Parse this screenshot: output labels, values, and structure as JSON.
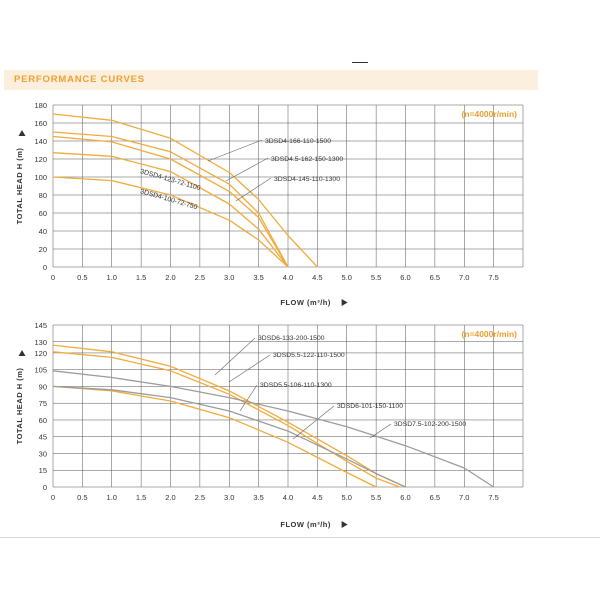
{
  "header": {
    "title": "PERFORMANCE CURVES"
  },
  "colors": {
    "orange": "#f0ab3c",
    "gray": "#9c9c9c",
    "grid": "#555555",
    "text": "#333333",
    "note": "#e8a030",
    "banner": "#fcefdd"
  },
  "chart_data": [
    {
      "type": "line",
      "speed_note": "(n=4000r/min)",
      "xlabel": "FLOW (m³/h)",
      "ylabel": "TOTAL HEAD H (m)",
      "xlim": [
        0,
        8
      ],
      "ylim": [
        0,
        180
      ],
      "x_ticks": [
        "0",
        "0.5",
        "1.0",
        "1.5",
        "2.0",
        "2.5",
        "3.0",
        "3.5",
        "4.0",
        "4.5",
        "5.0",
        "5.5",
        "6.0",
        "6.5",
        "7.0",
        "7.5"
      ],
      "y_ticks": [
        "0",
        "20",
        "40",
        "60",
        "80",
        "100",
        "120",
        "140",
        "160",
        "180"
      ],
      "series": [
        {
          "name": "3DSD4-166-110-1500",
          "color": "orange",
          "x": [
            0,
            1,
            2,
            3,
            3.5,
            4.0,
            4.5
          ],
          "y": [
            170,
            163,
            143,
            105,
            75,
            35,
            0
          ]
        },
        {
          "name": "3DSD4.5-162-150-1300",
          "color": "orange",
          "x": [
            0,
            1,
            2,
            3,
            3.5,
            4.0
          ],
          "y": [
            150,
            145,
            128,
            92,
            60,
            0
          ]
        },
        {
          "name": "3DSD4-145-110-1300",
          "color": "orange",
          "x": [
            0,
            1,
            2,
            3,
            3.5,
            4.0
          ],
          "y": [
            145,
            139,
            120,
            84,
            55,
            0
          ]
        },
        {
          "name": "3DSD4-123-72-1100",
          "color": "orange",
          "x": [
            0,
            1,
            2,
            3,
            3.5,
            4.0
          ],
          "y": [
            127,
            123,
            106,
            70,
            42,
            0
          ]
        },
        {
          "name": "3DSD4-100-72-750",
          "color": "orange",
          "x": [
            0,
            1,
            2,
            3,
            3.5,
            4.0
          ],
          "y": [
            100,
            96,
            80,
            52,
            30,
            0
          ]
        }
      ]
    },
    {
      "type": "line",
      "speed_note": "(n=4000r/min)",
      "xlabel": "FLOW (m³/h)",
      "ylabel": "TOTAL HEAD H (m)",
      "xlim": [
        0,
        8
      ],
      "ylim": [
        0,
        145
      ],
      "x_ticks": [
        "0",
        "0.5",
        "1.0",
        "1.5",
        "2.0",
        "2.5",
        "3.0",
        "3.5",
        "4.0",
        "4.5",
        "5.0",
        "5.5",
        "6.0",
        "6.5",
        "7.0",
        "7.5"
      ],
      "y_ticks": [
        "0",
        "15",
        "30",
        "45",
        "60",
        "75",
        "90",
        "105",
        "120",
        "130",
        "145"
      ],
      "series": [
        {
          "name": "3DSD6-133-200-1500",
          "color": "orange",
          "x": [
            0,
            1,
            2,
            3,
            4,
            5,
            5.5,
            6.0
          ],
          "y": [
            127,
            121,
            108,
            86,
            58,
            28,
            12,
            0
          ]
        },
        {
          "name": "3DSD5.5-122-110-1500",
          "color": "orange",
          "x": [
            0,
            1,
            2,
            3,
            4,
            5,
            5.5,
            5.9
          ],
          "y": [
            121,
            116,
            104,
            83,
            55,
            23,
            8,
            0
          ]
        },
        {
          "name": "3DSD5.5-106-110-1300",
          "color": "orange",
          "x": [
            0,
            1,
            2,
            3,
            4,
            5,
            5.5
          ],
          "y": [
            90,
            86,
            77,
            62,
            40,
            13,
            0
          ]
        },
        {
          "name": "3DSD6-101-150-1100",
          "color": "gray",
          "x": [
            0,
            1,
            2,
            3,
            4,
            5,
            5.5,
            6.0
          ],
          "y": [
            90,
            87,
            80,
            68,
            50,
            25,
            12,
            0
          ]
        },
        {
          "name": "3DSD7.5-102-200-1500",
          "color": "gray",
          "x": [
            0,
            1,
            2,
            3,
            4,
            5,
            6,
            7,
            7.5
          ],
          "y": [
            104,
            98,
            90,
            80,
            68,
            54,
            37,
            17,
            0
          ]
        }
      ]
    }
  ]
}
